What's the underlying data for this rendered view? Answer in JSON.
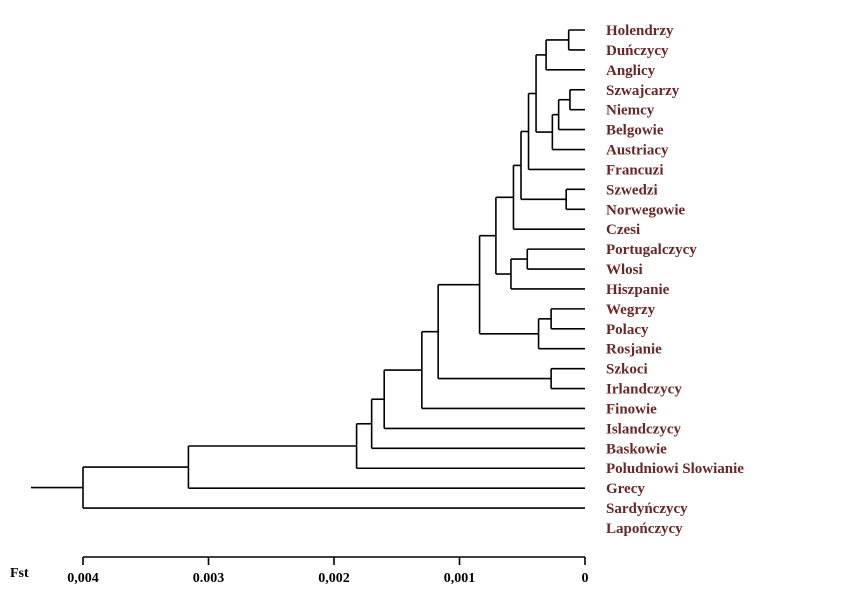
{
  "chart_data": {
    "type": "dendrogram",
    "metric_label": "Fst",
    "axis": {
      "range": [
        0.004,
        0
      ],
      "ticks": [
        {
          "value": 0.004,
          "label": "0,004"
        },
        {
          "value": 0.003,
          "label": "0.003"
        },
        {
          "value": 0.002,
          "label": "0,002"
        },
        {
          "value": 0.001,
          "label": "0,001"
        },
        {
          "value": 0,
          "label": "0"
        }
      ]
    },
    "leaves": [
      "Holendrzy",
      "Duńczycy",
      "Anglicy",
      "Szwajcarzy",
      "Niemcy",
      "Belgowie",
      "Austriacy",
      "Francuzi",
      "Szwedzi",
      "Norwegowie",
      "Czesi",
      "Portugalczycy",
      "Wlosi",
      "Hiszpanie",
      "Wegrzy",
      "Polacy",
      "Rosjanie",
      "Szkoci",
      "Irlandczycy",
      "Finowie",
      "Islandczycy",
      "Baskowie",
      "Poludniowi Slowianie",
      "Grecy",
      "Sardyńczycy",
      "Lapończycy"
    ],
    "tree": {
      "h": 0.004,
      "children": [
        {
          "h": 0.00316,
          "children": [
            {
              "h": 0.00182,
              "children": [
                {
                  "h": 0.0017,
                  "children": [
                    {
                      "h": 0.0016,
                      "children": [
                        {
                          "h": 0.0013,
                          "children": [
                            {
                              "h": 0.00117,
                              "children": [
                                {
                                  "h": 0.00084,
                                  "children": [
                                    {
                                      "h": 0.00071,
                                      "children": [
                                        {
                                          "h": 0.00057,
                                          "children": [
                                            {
                                              "h": 0.00051,
                                              "children": [
                                                {
                                                  "h": 0.00045,
                                                  "children": [
                                                    {
                                                      "h": 0.00039,
                                                      "children": [
                                                        {
                                                          "h": 0.00031,
                                                          "children": [
                                                            {
                                                              "h": 0.00013,
                                                              "children": [
                                                                {
                                                                  "leaf": "Holendrzy"
                                                                },
                                                                {
                                                                  "leaf": "Duńczycy"
                                                                }
                                                              ]
                                                            },
                                                            {
                                                              "leaf": "Anglicy"
                                                            }
                                                          ]
                                                        },
                                                        {
                                                          "h": 0.00026,
                                                          "children": [
                                                            {
                                                              "h": 0.00021,
                                                              "children": [
                                                                {
                                                                  "h": 0.00012,
                                                                  "children": [
                                                                    {
                                                                      "leaf": "Szwajcarzy"
                                                                    },
                                                                    {
                                                                      "leaf": "Niemcy"
                                                                    }
                                                                  ]
                                                                },
                                                                {
                                                                  "leaf": "Belgowie"
                                                                }
                                                              ]
                                                            },
                                                            {
                                                              "leaf": "Austriacy"
                                                            }
                                                          ]
                                                        }
                                                      ]
                                                    },
                                                    {
                                                      "leaf": "Francuzi"
                                                    }
                                                  ]
                                                },
                                                {
                                                  "h": 0.00015,
                                                  "children": [
                                                    {
                                                      "leaf": "Szwedzi"
                                                    },
                                                    {
                                                      "leaf": "Norwegowie"
                                                    }
                                                  ]
                                                }
                                              ]
                                            },
                                            {
                                              "leaf": "Czesi"
                                            }
                                          ]
                                        },
                                        {
                                          "h": 0.00059,
                                          "children": [
                                            {
                                              "h": 0.00046,
                                              "children": [
                                                {
                                                  "leaf": "Portugalczycy"
                                                },
                                                {
                                                  "leaf": "Wlosi"
                                                }
                                              ]
                                            },
                                            {
                                              "leaf": "Hiszpanie"
                                            }
                                          ]
                                        }
                                      ]
                                    },
                                    {
                                      "h": 0.00037,
                                      "children": [
                                        {
                                          "h": 0.00027,
                                          "children": [
                                            {
                                              "leaf": "Wegrzy"
                                            },
                                            {
                                              "leaf": "Polacy"
                                            }
                                          ]
                                        },
                                        {
                                          "leaf": "Rosjanie"
                                        }
                                      ]
                                    }
                                  ]
                                },
                                {
                                  "h": 0.00027,
                                  "children": [
                                    {
                                      "leaf": "Szkoci"
                                    },
                                    {
                                      "leaf": "Irlandczycy"
                                    }
                                  ]
                                }
                              ]
                            },
                            {
                              "leaf": "Finowie"
                            }
                          ]
                        },
                        {
                          "leaf": "Islandczycy"
                        }
                      ]
                    },
                    {
                      "leaf": "Baskowie"
                    }
                  ]
                },
                {
                  "leaf": "Poludniowi Slowianie"
                }
              ]
            },
            {
              "leaf": "Grecy"
            }
          ]
        },
        {
          "leaf": "Sardyńczycy"
        }
      ]
    }
  }
}
